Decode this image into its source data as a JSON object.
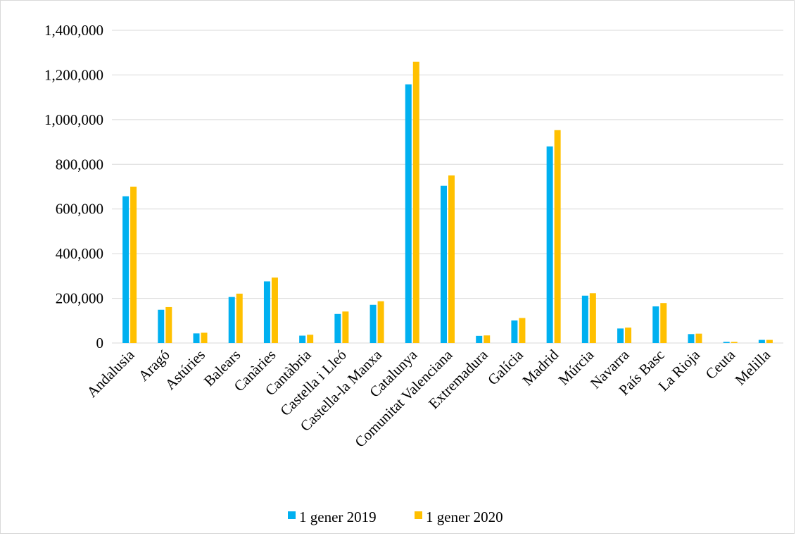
{
  "chart_data": {
    "type": "bar",
    "categories": [
      "Andalusia",
      "Aragó",
      "Astúries",
      "Balears",
      "Canàries",
      "Cantàbria",
      "Castella i Lleó",
      "Castella-la Manxa",
      "Catalunya",
      "Comunitat Valenciana",
      "Extremadura",
      "Galícia",
      "Madrid",
      "Múrcia",
      "Navarra",
      "País Basc",
      "La Rioja",
      "Ceuta",
      "Melilla"
    ],
    "series": [
      {
        "name": "1 gener 2019",
        "color": "#00b0f0",
        "values": [
          657000,
          149000,
          43000,
          206000,
          276000,
          33000,
          130000,
          171000,
          1158000,
          704000,
          32000,
          101000,
          880000,
          212000,
          65000,
          164000,
          40000,
          5000,
          14000
        ]
      },
      {
        "name": "1 gener 2020",
        "color": "#ffc000",
        "values": [
          700000,
          161000,
          46000,
          221000,
          293000,
          37000,
          141000,
          187000,
          1259000,
          750000,
          34000,
          112000,
          953000,
          223000,
          69000,
          179000,
          42000,
          5000,
          14000
        ]
      }
    ],
    "yticks": [
      "0",
      "200,000",
      "400,000",
      "600,000",
      "800,000",
      "1,000,000",
      "1,200,000",
      "1,400,000"
    ],
    "ylim": [
      0,
      1400000
    ],
    "grid": true,
    "legend_position": "bottom"
  }
}
